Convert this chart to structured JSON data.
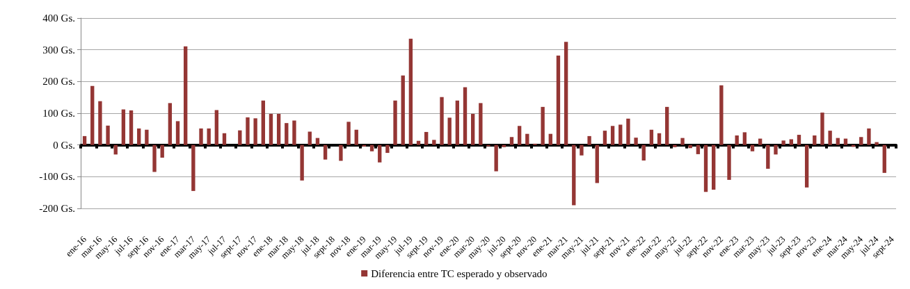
{
  "chart_data": {
    "type": "bar",
    "categories": [
      "ene-16",
      null,
      "mar-16",
      null,
      "may-16",
      null,
      "jul-16",
      null,
      "sept-16",
      null,
      "nov-16",
      null,
      "ene-17",
      null,
      "mar-17",
      null,
      "may-17",
      null,
      "jul-17",
      null,
      "sept-17",
      null,
      "nov-17",
      null,
      "ene-18",
      null,
      "mar-18",
      null,
      "may-18",
      null,
      "jul-18",
      null,
      "sept-18",
      null,
      "nov-18",
      null,
      "ene-19",
      null,
      "mar-19",
      null,
      "may-19",
      null,
      "jul-19",
      null,
      "sept-19",
      null,
      "nov-19",
      null,
      "ene-20",
      null,
      "mar-20",
      null,
      "may-20",
      null,
      "jul-20",
      null,
      "sept-20",
      null,
      "nov-20",
      null,
      "ene-21",
      null,
      "mar-21",
      null,
      "may-21",
      null,
      "jul-21",
      null,
      "sept-21",
      null,
      "nov-21",
      null,
      "ene-22",
      null,
      "mar-22",
      null,
      "may-22",
      null,
      "jul-22",
      null,
      "sept-22",
      null,
      "nov-22",
      null,
      "ene-23",
      null,
      "mar-23",
      null,
      "may-23",
      null,
      "jul-23",
      null,
      "sept-23",
      null,
      "nov-23",
      null,
      "ene-24",
      null,
      "mar-24",
      null,
      "may-24",
      null,
      "jul-24",
      null,
      "sept-24"
    ],
    "series": [
      {
        "name": "Diferencia entre TC esperado y observado",
        "color": "#943634",
        "values": [
          28,
          186,
          138,
          61,
          -30,
          112,
          109,
          52,
          48,
          -85,
          -40,
          132,
          75,
          311,
          -145,
          52,
          52,
          110,
          37,
          0,
          46,
          87,
          84,
          140,
          98,
          98,
          69,
          77,
          -112,
          42,
          22,
          -46,
          0,
          -50,
          73,
          48,
          -5,
          -20,
          -55,
          -25,
          140,
          219,
          335,
          13,
          41,
          16,
          151,
          86,
          140,
          182,
          98,
          132,
          -4,
          -83,
          -7,
          25,
          60,
          35,
          4,
          120,
          35,
          282,
          325,
          -190,
          -33,
          28,
          -120,
          45,
          60,
          64,
          83,
          23,
          -49,
          48,
          37,
          120,
          -7,
          22,
          -10,
          -29,
          -148,
          -141,
          188,
          -110,
          30,
          40,
          -20,
          20,
          -75,
          -30,
          14,
          18,
          32,
          -134,
          30,
          102,
          45,
          22,
          20,
          -6,
          25,
          52,
          9,
          -88,
          null
        ]
      }
    ],
    "ylim": [
      -200,
      400
    ],
    "yticks": [
      {
        "value": -200,
        "label": "-200 Gs."
      },
      {
        "value": -100,
        "label": "-100 Gs."
      },
      {
        "value": 0,
        "label": "0 Gs."
      },
      {
        "value": 100,
        "label": "100 Gs."
      },
      {
        "value": 200,
        "label": "200 Gs."
      },
      {
        "value": 300,
        "label": "300 Gs."
      },
      {
        "value": 400,
        "label": "400 Gs."
      }
    ],
    "grid": "y",
    "legend": "bottom"
  }
}
